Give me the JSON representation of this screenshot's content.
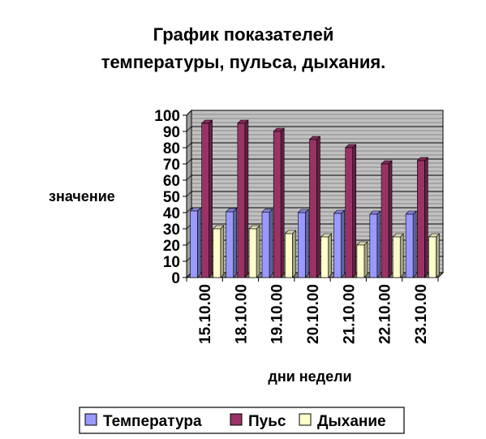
{
  "chart_data": {
    "type": "bar",
    "title_lines": [
      "График показателей",
      "температуры, пульса, дыхания."
    ],
    "xlabel": "дни недели",
    "ylabel": "значение",
    "ylim": [
      0,
      100
    ],
    "yticks": [
      0,
      10,
      20,
      30,
      40,
      50,
      60,
      70,
      80,
      90,
      100
    ],
    "categories": [
      "15.10.00",
      "18.10.00",
      "19.10.00",
      "20.10.00",
      "21.10.00",
      "22.10.00",
      "23.10.00"
    ],
    "series": [
      {
        "name": "Температура",
        "color": "#9999ff",
        "values": [
          41,
          40.5,
          40.3,
          40,
          39.5,
          39,
          39
        ]
      },
      {
        "name": "Пуьс",
        "color": "#993366",
        "values": [
          95,
          95,
          90,
          85,
          80,
          70,
          72
        ]
      },
      {
        "name": "Дыхание",
        "color": "#ffffcc",
        "values": [
          30,
          30,
          27,
          25,
          20,
          25,
          25
        ]
      }
    ],
    "grid": true,
    "wall_color": "#c0c0c0",
    "legend_position": "bottom"
  }
}
